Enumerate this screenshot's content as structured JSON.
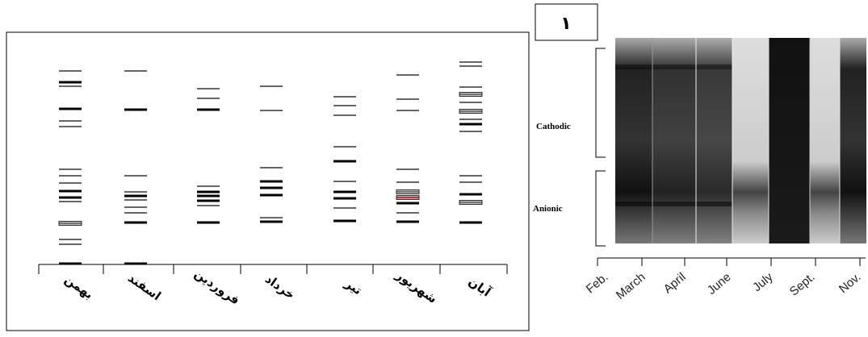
{
  "panel_label": "١",
  "left_panel": {
    "lane_labels": [
      "بهمن",
      "اسفند",
      "فروردین",
      "خرداد",
      "تیر",
      "شهریور",
      "آبان"
    ]
  },
  "right_panel": {
    "region_labels": [
      "Cathodic",
      "Anionic"
    ],
    "lane_labels": [
      "Feb.",
      "March",
      "April",
      "June",
      "July",
      "Sept.",
      "Nov."
    ]
  }
}
